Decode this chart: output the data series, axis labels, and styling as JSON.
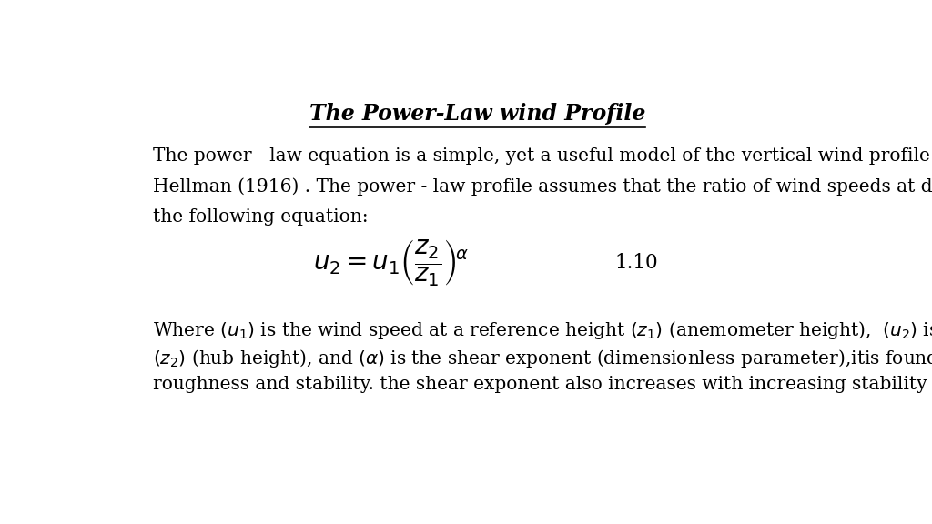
{
  "title": "The Power-Law wind Profile",
  "para1_line1": "The power - law equation is a simple, yet a useful model of the vertical wind profile which was first proposed by",
  "para1_line2": "Hellman (1916) . The power - law profile assumes that the ratio of wind speeds at different heights can be found by",
  "para1_line3": "the following equation:",
  "equation_label": "1.10",
  "bg_color": "#ffffff",
  "text_color": "#000000",
  "title_fontsize": 17,
  "body_fontsize": 14.5,
  "equation_fontsize": 20
}
